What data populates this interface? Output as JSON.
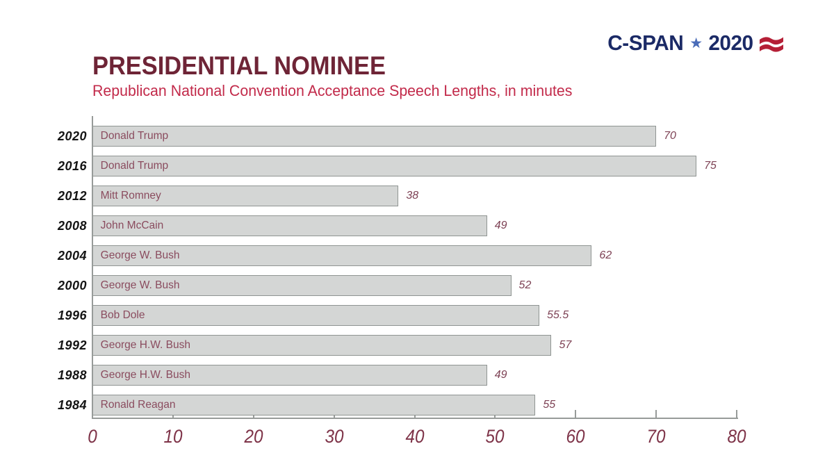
{
  "logo": {
    "brand": "C-SPAN",
    "star": "★",
    "year": "2020",
    "navy": "#1b2a66",
    "star_blue": "#4a6cb8",
    "stripe_red": "#b51f36"
  },
  "colors": {
    "title_maroon": "#6e2436",
    "subtitle_crimson": "#c22a4a",
    "bar_fill": "#d4d6d5",
    "bar_border": "#8f9492",
    "bar_name_text": "#8a4b5e",
    "value_text": "#7d4154",
    "tick_text": "#7e3348",
    "axis_gray": "#979b99",
    "year_text": "#141414",
    "background": "#ffffff"
  },
  "chart_data": {
    "type": "bar",
    "orientation": "horizontal",
    "title": "PRESIDENTIAL NOMINEE",
    "subtitle": "Republican National Convention Acceptance Speech Lengths, in minutes",
    "unit": "minutes",
    "xlabel": "",
    "ylabel": "",
    "xlim": [
      0,
      80
    ],
    "x_ticks": [
      0,
      10,
      20,
      30,
      40,
      50,
      60,
      70,
      80
    ],
    "grid": false,
    "value_labels": true,
    "categories": [
      "2020",
      "2016",
      "2012",
      "2008",
      "2004",
      "2000",
      "1996",
      "1992",
      "1988",
      "1984"
    ],
    "rows": [
      {
        "year": "2020",
        "name": "Donald Trump",
        "value": 70
      },
      {
        "year": "2016",
        "name": "Donald Trump",
        "value": 75
      },
      {
        "year": "2012",
        "name": "Mitt Romney",
        "value": 38
      },
      {
        "year": "2008",
        "name": "John McCain",
        "value": 49
      },
      {
        "year": "2004",
        "name": "George W. Bush",
        "value": 62
      },
      {
        "year": "2000",
        "name": "George W. Bush",
        "value": 52
      },
      {
        "year": "1996",
        "name": "Bob Dole",
        "value": 55.5
      },
      {
        "year": "1992",
        "name": "George H.W. Bush",
        "value": 57
      },
      {
        "year": "1988",
        "name": "George H.W. Bush",
        "value": 49
      },
      {
        "year": "1984",
        "name": "Ronald Reagan",
        "value": 55
      }
    ]
  }
}
